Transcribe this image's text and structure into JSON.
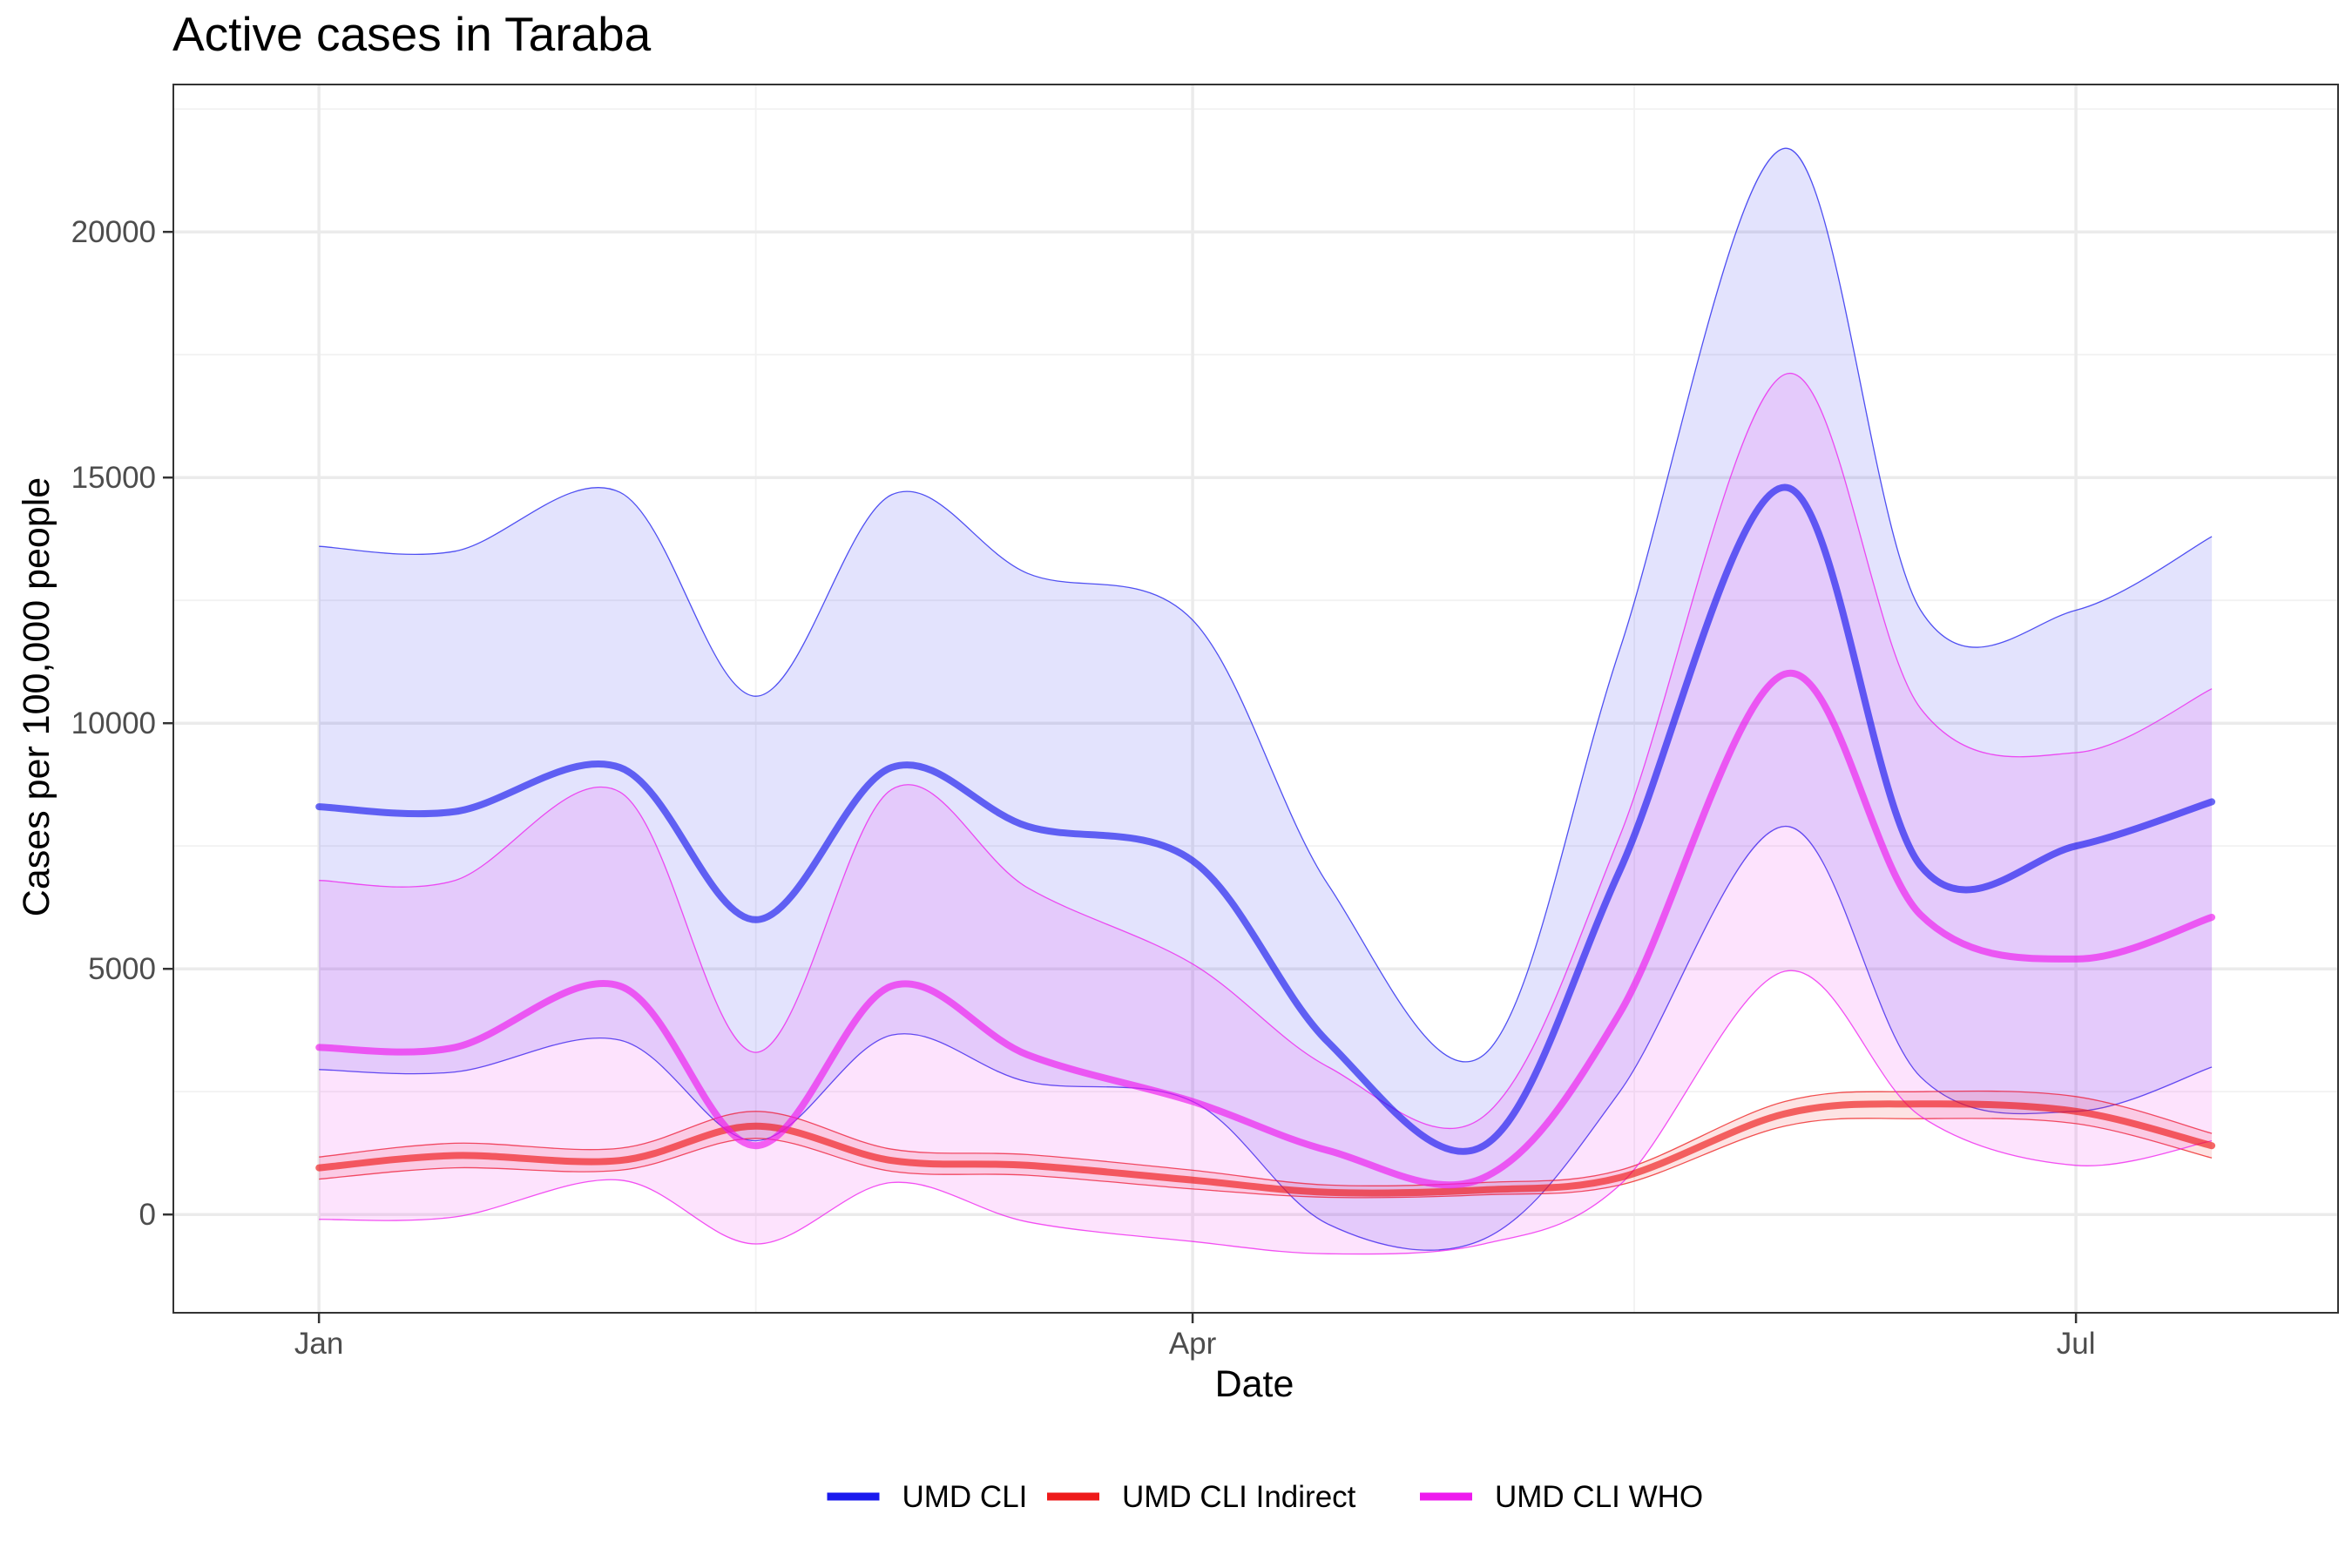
{
  "chart_data": {
    "type": "line",
    "title": "Active cases in Taraba",
    "xlabel": "Date",
    "ylabel": "Cases per 100,000 people",
    "x_ticks": [
      {
        "label": "Jan",
        "date": "2021-01-01"
      },
      {
        "label": "Apr",
        "date": "2021-04-01"
      },
      {
        "label": "Jul",
        "date": "2021-07-01"
      }
    ],
    "y_ticks": [
      0,
      5000,
      10000,
      15000,
      20000
    ],
    "xlim": [
      "2020-12-17",
      "2021-07-28"
    ],
    "ylim": [
      -2000,
      23000
    ],
    "grid": true,
    "legend_position": "bottom",
    "x": [
      "2021-01-01",
      "2021-01-15",
      "2021-02-01",
      "2021-02-15",
      "2021-03-01",
      "2021-03-15",
      "2021-04-01",
      "2021-04-15",
      "2021-05-01",
      "2021-05-15",
      "2021-06-01",
      "2021-06-15",
      "2021-07-01",
      "2021-07-15"
    ],
    "series": [
      {
        "name": "UMD CLI",
        "color": "#1a1aee",
        "values": [
          8300,
          8200,
          9100,
          6000,
          9100,
          7900,
          7200,
          3500,
          1400,
          7000,
          14800,
          7100,
          7500,
          8400
        ],
        "lower": [
          2950,
          2900,
          3550,
          1500,
          3650,
          2700,
          2300,
          -200,
          -500,
          2500,
          7900,
          2800,
          2100,
          3000
        ],
        "upper": [
          13600,
          13500,
          14700,
          10550,
          14650,
          13050,
          12100,
          6700,
          3250,
          11500,
          21700,
          12300,
          12300,
          13800
        ]
      },
      {
        "name": "UMD CLI Indirect",
        "color": "#ee1a1a",
        "values": [
          950,
          1200,
          1100,
          1800,
          1100,
          1000,
          700,
          450,
          500,
          750,
          2050,
          2250,
          2100,
          1400
        ],
        "lower": [
          720,
          950,
          900,
          1550,
          880,
          800,
          520,
          350,
          400,
          600,
          1800,
          1950,
          1850,
          1150
        ],
        "upper": [
          1170,
          1450,
          1350,
          2100,
          1330,
          1220,
          900,
          600,
          650,
          900,
          2300,
          2500,
          2400,
          1650
        ]
      },
      {
        "name": "UMD CLI WHO",
        "color": "#ee1aee",
        "values": [
          3400,
          3400,
          4650,
          1400,
          4650,
          3250,
          2300,
          1300,
          750,
          4100,
          11000,
          6100,
          5200,
          6050
        ],
        "lower": [
          -100,
          -50,
          700,
          -600,
          650,
          -150,
          -550,
          -800,
          -600,
          600,
          4950,
          2000,
          1000,
          1500
        ],
        "upper": [
          6800,
          6800,
          8600,
          3300,
          8650,
          6650,
          5100,
          3000,
          2000,
          7700,
          17100,
          10300,
          9400,
          10700
        ]
      }
    ]
  }
}
